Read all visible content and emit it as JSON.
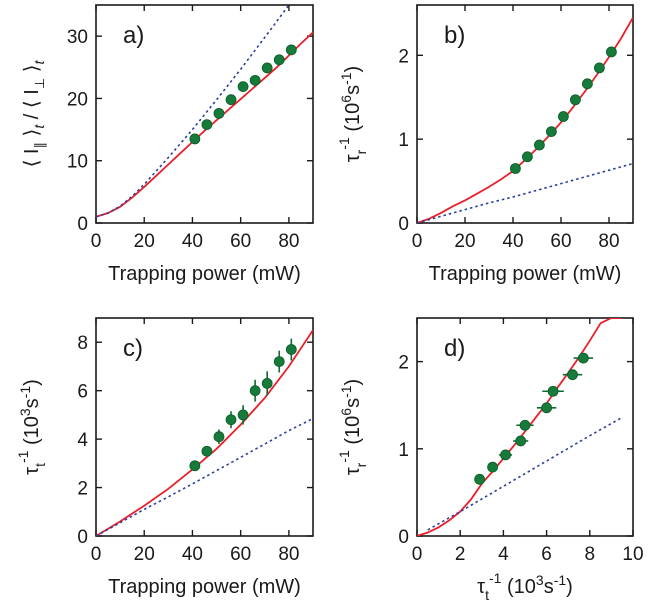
{
  "colors": {
    "fit": "#e8202a",
    "reference": "#2b3f9e",
    "points": "#157a3a"
  },
  "chart_data": [
    {
      "type": "scatter",
      "panel_label": "a)",
      "xlabel": "Trapping power (mW)",
      "ylabel": "⟨ I∥ ⟩t / ⟨ I⊥ ⟩t",
      "xlim": [
        0,
        90
      ],
      "ylim": [
        0,
        35
      ],
      "xticks": [
        0,
        20,
        40,
        60,
        80
      ],
      "yticks": [
        0,
        10,
        20,
        30
      ],
      "grid": false,
      "series": [
        {
          "kind": "points",
          "x": [
            41,
            46,
            51,
            56,
            61,
            66,
            71,
            76,
            81
          ],
          "y": [
            13.5,
            15.8,
            17.6,
            19.8,
            21.9,
            22.9,
            24.9,
            26.2,
            27.8
          ]
        },
        {
          "kind": "fit",
          "x": [
            0,
            5,
            10,
            15,
            20,
            25,
            30,
            35,
            40,
            45,
            50,
            55,
            60,
            65,
            70,
            75,
            80,
            85,
            90
          ],
          "y": [
            1.0,
            1.6,
            2.6,
            4.1,
            5.8,
            7.6,
            9.4,
            11.2,
            13.0,
            14.8,
            16.5,
            18.2,
            19.9,
            21.6,
            23.3,
            25.0,
            26.9,
            28.8,
            30.6
          ]
        },
        {
          "kind": "reference",
          "x": [
            0,
            5,
            10,
            15,
            20,
            30,
            40,
            50,
            60,
            70,
            80
          ],
          "y": [
            1.0,
            1.6,
            2.7,
            4.3,
            6.2,
            10.5,
            15.0,
            19.8,
            24.7,
            29.8,
            35.0
          ]
        }
      ]
    },
    {
      "type": "scatter",
      "panel_label": "b)",
      "xlabel": "Trapping power  (mW)",
      "ylabel": "τr-1 (10⁶s-1)",
      "xlim": [
        0,
        90
      ],
      "ylim": [
        0,
        2.6
      ],
      "xticks": [
        0,
        20,
        40,
        60,
        80
      ],
      "yticks": [
        0,
        1,
        2
      ],
      "grid": false,
      "series": [
        {
          "kind": "points",
          "x": [
            41,
            46,
            51,
            56,
            61,
            66,
            71,
            76,
            81
          ],
          "y": [
            0.65,
            0.79,
            0.93,
            1.09,
            1.27,
            1.47,
            1.66,
            1.85,
            2.04
          ]
        },
        {
          "kind": "fit",
          "x": [
            0,
            5,
            10,
            15,
            20,
            25,
            30,
            35,
            40,
            45,
            50,
            55,
            60,
            65,
            70,
            75,
            80,
            85,
            90
          ],
          "y": [
            0.0,
            0.05,
            0.12,
            0.2,
            0.27,
            0.35,
            0.43,
            0.52,
            0.62,
            0.75,
            0.89,
            1.04,
            1.2,
            1.38,
            1.57,
            1.77,
            1.98,
            2.2,
            2.45
          ]
        },
        {
          "kind": "reference",
          "x": [
            0,
            10,
            20,
            30,
            40,
            50,
            60,
            70,
            80,
            90
          ],
          "y": [
            0.0,
            0.08,
            0.16,
            0.24,
            0.31,
            0.39,
            0.47,
            0.55,
            0.63,
            0.71
          ]
        }
      ]
    },
    {
      "type": "scatter",
      "panel_label": "c)",
      "xlabel": "Trapping power (mW)",
      "ylabel": "τt-1 (10³s-1)",
      "xlim": [
        0,
        90
      ],
      "ylim": [
        0,
        9
      ],
      "xticks": [
        0,
        20,
        40,
        60,
        80
      ],
      "yticks": [
        0,
        2,
        4,
        6,
        8
      ],
      "grid": false,
      "series": [
        {
          "kind": "points",
          "x": [
            41,
            46,
            51,
            56,
            61,
            66,
            71,
            76,
            81
          ],
          "y": [
            2.9,
            3.5,
            4.1,
            4.8,
            5.0,
            6.0,
            6.3,
            7.2,
            7.7
          ],
          "yerr": [
            0.1,
            0.2,
            0.3,
            0.35,
            0.4,
            0.45,
            0.5,
            0.45,
            0.45
          ]
        },
        {
          "kind": "fit",
          "x": [
            0,
            10,
            20,
            30,
            40,
            50,
            60,
            70,
            80,
            90
          ],
          "y": [
            0.0,
            0.6,
            1.25,
            1.95,
            2.75,
            3.6,
            4.6,
            5.7,
            7.0,
            8.5
          ]
        },
        {
          "kind": "reference",
          "x": [
            0,
            10,
            20,
            30,
            40,
            50,
            60,
            70,
            80,
            90
          ],
          "y": [
            0.0,
            0.55,
            1.1,
            1.62,
            2.15,
            2.7,
            3.25,
            3.8,
            4.35,
            4.85
          ]
        }
      ]
    },
    {
      "type": "scatter",
      "panel_label": "d)",
      "xlabel": "τt-1 (10³s-1)",
      "ylabel": "τr-1 (10⁶s-1)",
      "xlim": [
        0,
        10
      ],
      "ylim": [
        0,
        2.5
      ],
      "xticks": [
        0,
        2,
        4,
        6,
        8,
        10
      ],
      "yticks": [
        0,
        1,
        2
      ],
      "grid": false,
      "series": [
        {
          "kind": "points",
          "x": [
            2.9,
            3.5,
            4.1,
            4.8,
            5.0,
            6.0,
            6.3,
            7.2,
            7.7
          ],
          "y": [
            0.65,
            0.79,
            0.93,
            1.09,
            1.27,
            1.47,
            1.66,
            1.85,
            2.04
          ],
          "xerr": [
            0.1,
            0.2,
            0.3,
            0.35,
            0.4,
            0.45,
            0.5,
            0.45,
            0.45
          ]
        },
        {
          "kind": "fit",
          "x": [
            0.0,
            0.5,
            1.0,
            1.5,
            2.0,
            2.5,
            3.0,
            3.5,
            4.0,
            4.5,
            5.0,
            5.5,
            6.0,
            6.5,
            7.0,
            7.5,
            8.0,
            8.5,
            9.0,
            9.5
          ],
          "y": [
            0.0,
            0.04,
            0.1,
            0.18,
            0.28,
            0.42,
            0.6,
            0.74,
            0.89,
            1.04,
            1.2,
            1.36,
            1.52,
            1.7,
            1.87,
            2.05,
            2.24,
            2.44,
            2.5,
            2.5
          ]
        },
        {
          "kind": "reference",
          "x": [
            0.5,
            2.0,
            4.0,
            6.0,
            8.0,
            9.5
          ],
          "y": [
            0.07,
            0.28,
            0.57,
            0.86,
            1.15,
            1.36
          ]
        }
      ]
    }
  ]
}
